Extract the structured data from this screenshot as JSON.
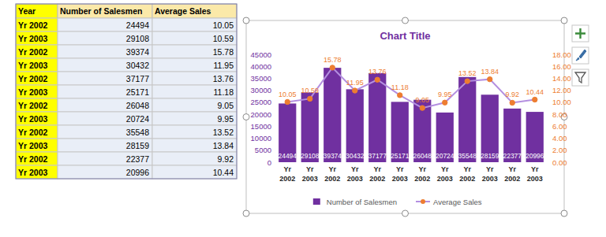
{
  "table": {
    "header": [
      "Year",
      "Number of Salesmen",
      "Average Sales"
    ],
    "rows": [
      [
        "Yr 2002",
        24494,
        10.05
      ],
      [
        "Yr 2003",
        29108,
        10.59
      ],
      [
        "Yr 2002",
        39374,
        15.78
      ],
      [
        "Yr 2003",
        30432,
        11.95
      ],
      [
        "Yr 2002",
        37177,
        13.76
      ],
      [
        "Yr 2003",
        25171,
        11.18
      ],
      [
        "Yr 2002",
        26048,
        9.05
      ],
      [
        "Yr 2003",
        20724,
        9.95
      ],
      [
        "Yr 2002",
        35548,
        13.52
      ],
      [
        "Yr 2003",
        28159,
        13.84
      ],
      [
        "Yr 2002",
        22377,
        9.92
      ],
      [
        "Yr 2003",
        20996,
        10.44
      ]
    ]
  },
  "chart_data": {
    "type": "bar",
    "title": "Chart Title",
    "categories": [
      "Yr 2002",
      "Yr 2003",
      "Yr 2002",
      "Yr 2003",
      "Yr 2002",
      "Yr 2003",
      "Yr 2002",
      "Yr 2003",
      "Yr 2002",
      "Yr 2003",
      "Yr 2002",
      "Yr 2003"
    ],
    "series": [
      {
        "name": "Number of Salesmen",
        "type": "bar",
        "color": "#7030a0",
        "values": [
          24494,
          29108,
          39374,
          30432,
          37177,
          25171,
          26048,
          20724,
          35548,
          28159,
          22377,
          20996
        ]
      },
      {
        "name": "Average Sales",
        "type": "line",
        "color": "#b48fe0",
        "marker": "circle",
        "axis": "y2",
        "values": [
          10.05,
          10.59,
          15.78,
          11.95,
          13.76,
          11.18,
          9.05,
          9.95,
          13.52,
          13.84,
          9.92,
          10.44
        ]
      }
    ],
    "ylim": [
      0,
      45000
    ],
    "yticks": [
      0,
      5000,
      10000,
      15000,
      20000,
      25000,
      30000,
      35000,
      40000,
      45000
    ],
    "y2lim": [
      0,
      18
    ],
    "y2ticks": [
      {
        "value": 0,
        "label": "0.00"
      },
      {
        "value": 2,
        "label": "2.00"
      },
      {
        "value": 4,
        "label": "4.00"
      },
      {
        "value": 6,
        "label": "6.00"
      },
      {
        "value": 8,
        "label": "8.00"
      },
      {
        "value": 10,
        "label": "10.00"
      },
      {
        "value": 12,
        "label": "12.00"
      },
      {
        "value": 14,
        "label": "14.00"
      },
      {
        "value": 16,
        "label": "16.00"
      },
      {
        "value": 18,
        "label": "18.00"
      }
    ],
    "data_labels": true,
    "legend": "bottom",
    "grid": false
  }
}
